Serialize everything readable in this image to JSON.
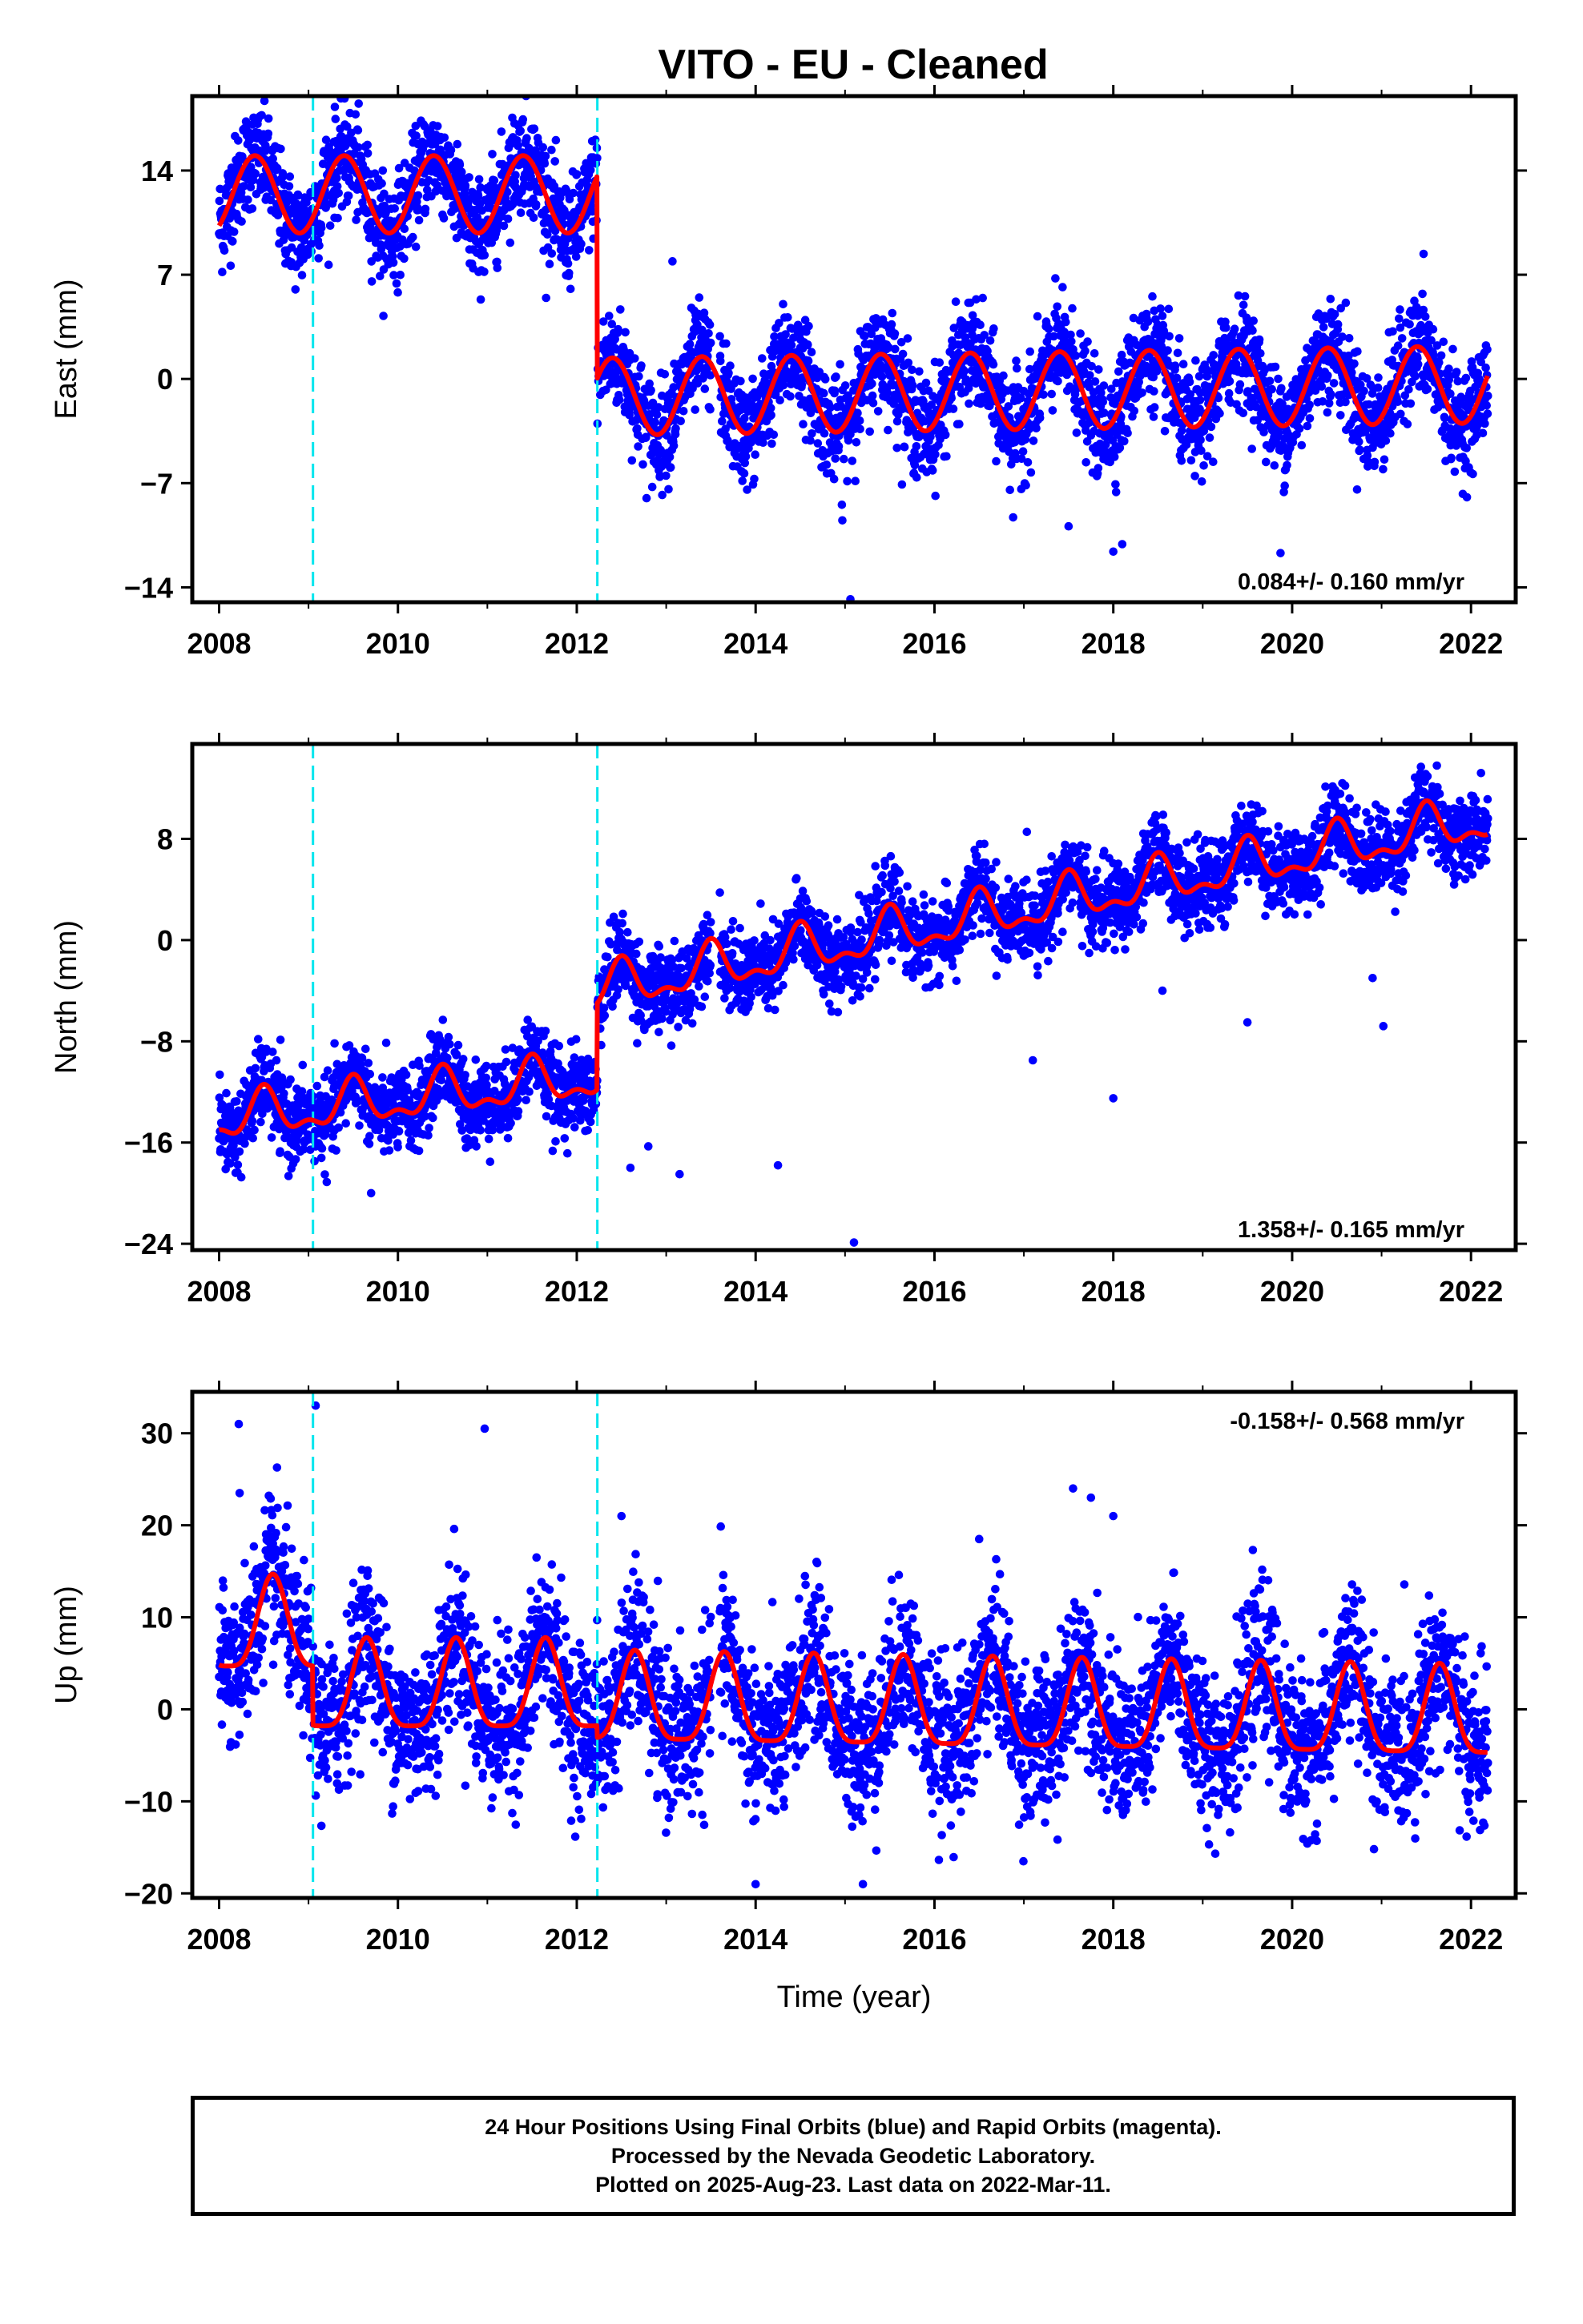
{
  "title": "VITO  - EU - Cleaned",
  "chart_data": [
    {
      "type": "scatter",
      "panel": "east",
      "ylabel": "East (mm)",
      "xlabel": "",
      "xlim": [
        2007.7,
        2022.5
      ],
      "ylim": [
        -15,
        19
      ],
      "xticks": [
        2008,
        2010,
        2012,
        2014,
        2016,
        2018,
        2020,
        2022
      ],
      "yticks": [
        -14,
        -7,
        0,
        7,
        14
      ],
      "rate_text": "0.084+/- 0.160 mm/yr",
      "rate_position": "bottom-right",
      "steps": [
        2009.05,
        2012.23
      ],
      "series": [
        {
          "role": "observations",
          "color": "#0000ff",
          "scatter_sd": 1.7
        },
        {
          "role": "model-fit",
          "color": "#ff0000",
          "segments": [
            {
              "start": 2008.0,
              "end": 2012.23,
              "offset": 12.4,
              "trend": 0.0,
              "annual_amp": 2.6,
              "annual_peak": 0.4,
              "semiannual_amp": 0.0
            },
            {
              "start": 2012.23,
              "end": 2022.19,
              "offset": -1.2,
              "trend": 0.084,
              "annual_amp": 2.6,
              "annual_peak": 0.4,
              "semiannual_amp": 0.0
            }
          ]
        }
      ],
      "outliers": [
        [
          2014.97,
          -9.5
        ],
        [
          2015.06,
          -14.8
        ],
        [
          2018.0,
          -11.6
        ],
        [
          2018.1,
          -11.1
        ],
        [
          2019.87,
          -11.7
        ],
        [
          2021.47,
          8.4
        ],
        [
          2013.07,
          7.9
        ],
        [
          2016.88,
          -9.3
        ],
        [
          2017.5,
          -9.9
        ]
      ]
    },
    {
      "type": "scatter",
      "panel": "north",
      "ylabel": "North (mm)",
      "xlabel": "",
      "xlim": [
        2007.7,
        2022.5
      ],
      "ylim": [
        -24.5,
        15.5
      ],
      "xticks": [
        2008,
        2010,
        2012,
        2014,
        2016,
        2018,
        2020,
        2022
      ],
      "yticks": [
        -24,
        -16,
        -8,
        0,
        8
      ],
      "rate_text": "1.358+/- 0.165 mm/yr",
      "rate_position": "bottom-right",
      "steps": [
        2009.05,
        2012.23
      ],
      "series": [
        {
          "role": "observations",
          "color": "#0000ff",
          "scatter_sd": 1.6
        },
        {
          "role": "model-fit",
          "color": "#ff0000",
          "segments": [
            {
              "start": 2008.0,
              "end": 2012.23,
              "offset": -14.2,
              "trend": 0.8,
              "annual_amp": 1.6,
              "annual_peak": 0.5,
              "semiannual_amp": 0.8
            },
            {
              "start": 2012.23,
              "end": 2022.19,
              "offset": -4.0,
              "trend": 1.36,
              "annual_amp": 1.6,
              "annual_peak": 0.5,
              "semiannual_amp": 0.8
            }
          ]
        }
      ],
      "outliers": [
        [
          2012.8,
          -16.3
        ],
        [
          2013.15,
          -18.5
        ],
        [
          2014.25,
          -17.8
        ],
        [
          2015.1,
          -23.9
        ],
        [
          2017.1,
          -9.5
        ],
        [
          2018.0,
          -12.5
        ],
        [
          2019.5,
          -6.5
        ],
        [
          2020.9,
          -3.0
        ],
        [
          2021.02,
          -6.8
        ],
        [
          2009.7,
          -20.0
        ],
        [
          2012.6,
          -18.0
        ],
        [
          2018.55,
          -4.0
        ]
      ]
    },
    {
      "type": "scatter",
      "panel": "up",
      "ylabel": "Up (mm)",
      "xlabel": "Time (year)",
      "xlim": [
        2007.7,
        2022.5
      ],
      "ylim": [
        -20.5,
        34.5
      ],
      "xticks": [
        2008,
        2010,
        2012,
        2014,
        2016,
        2018,
        2020,
        2022
      ],
      "yticks": [
        -20,
        -10,
        0,
        10,
        20,
        30
      ],
      "rate_text": "-0.158+/- 0.568 mm/yr",
      "rate_position": "top-right",
      "steps": [
        2009.05,
        2012.23
      ],
      "series": [
        {
          "role": "observations",
          "color": "#0000ff",
          "scatter_sd": 4.2
        },
        {
          "role": "model-fit",
          "color": "#ff0000",
          "segments": [
            {
              "start": 2008.0,
              "end": 2009.05,
              "offset": 8.5,
              "trend": 0.0,
              "annual_amp": 5.0,
              "annual_peak": 0.6,
              "semiannual_amp": 1.2
            },
            {
              "start": 2009.05,
              "end": 2012.23,
              "offset": 1.8,
              "trend": 0.0,
              "annual_amp": 4.8,
              "annual_peak": 0.65,
              "semiannual_amp": 1.2
            },
            {
              "start": 2012.23,
              "end": 2022.19,
              "offset": 0.5,
              "trend": -0.158,
              "annual_amp": 4.8,
              "annual_peak": 0.65,
              "semiannual_amp": 1.2
            }
          ]
        }
      ],
      "outliers": [
        [
          2008.22,
          31.0
        ],
        [
          2008.23,
          23.5
        ],
        [
          2009.08,
          33.0
        ],
        [
          2010.97,
          30.5
        ],
        [
          2017.55,
          24.0
        ],
        [
          2017.75,
          23.0
        ],
        [
          2018.0,
          21.0
        ],
        [
          2012.5,
          21.0
        ],
        [
          2011.55,
          16.5
        ],
        [
          2015.2,
          -19.0
        ],
        [
          2014.0,
          -19.0
        ],
        [
          2016.5,
          18.5
        ]
      ]
    }
  ],
  "footer": {
    "line1": "24 Hour Positions Using Final Orbits (blue) and Rapid Orbits (magenta).",
    "line2": "Processed by the Nevada Geodetic Laboratory.",
    "line3": "Plotted on 2025-Aug-23. Last data on 2022-Mar-11."
  }
}
